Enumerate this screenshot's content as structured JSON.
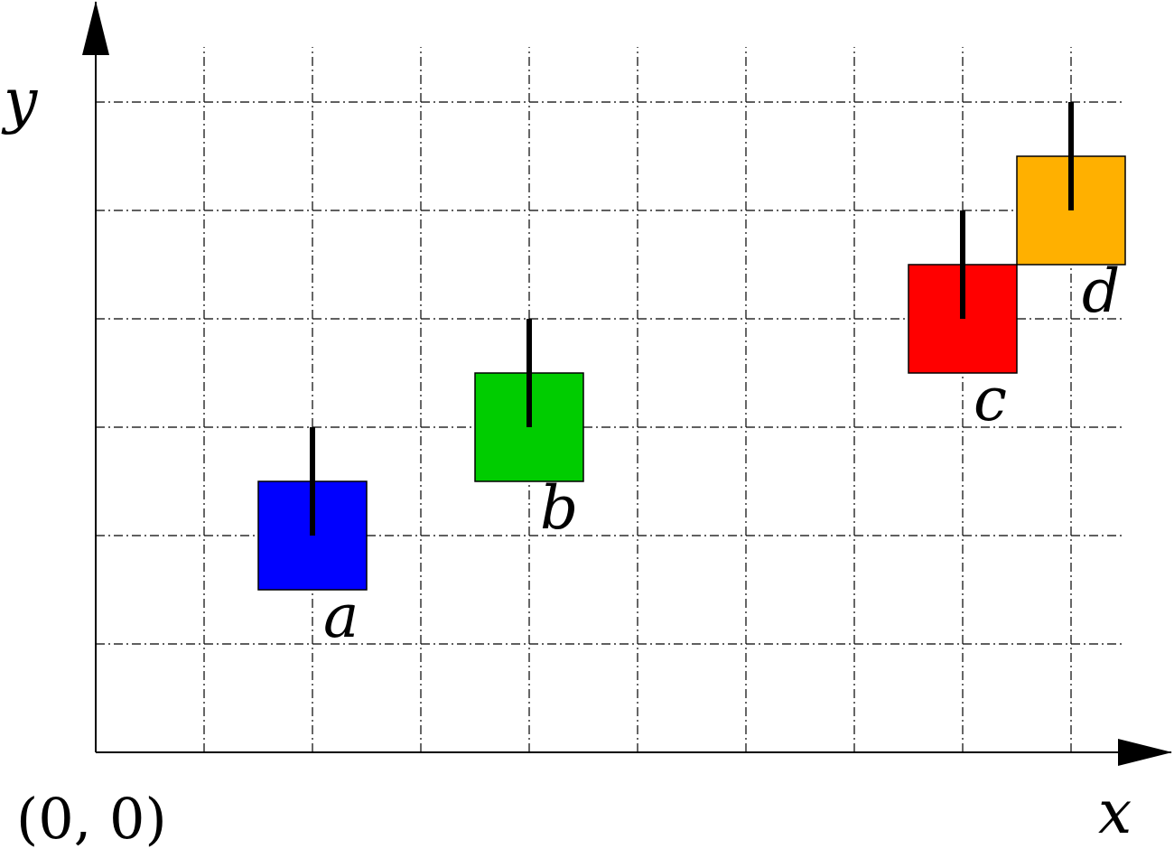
{
  "axes": {
    "x_label": "x",
    "y_label": "y",
    "origin_label": "(0, 0)",
    "x_max": 9,
    "y_max": 6
  },
  "grid": {
    "on": true,
    "style": "dash-dot"
  },
  "squares": [
    {
      "name": "a",
      "x": 2,
      "y": 2,
      "color": "#0000ff",
      "bar_top_y": 3
    },
    {
      "name": "b",
      "x": 4,
      "y": 3,
      "color": "#00cc00",
      "bar_top_y": 4
    },
    {
      "name": "c",
      "x": 8,
      "y": 4,
      "color": "#ff0000",
      "bar_top_y": 5
    },
    {
      "name": "d",
      "x": 9,
      "y": 5,
      "color": "#ffb000",
      "bar_top_y": 6
    }
  ]
}
